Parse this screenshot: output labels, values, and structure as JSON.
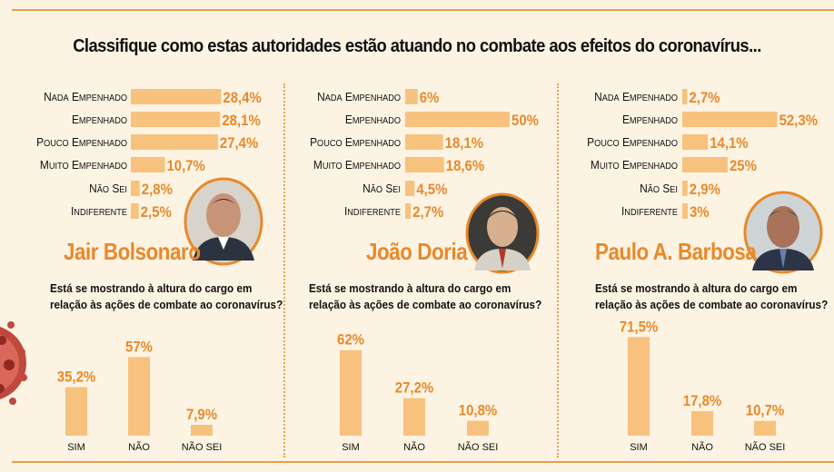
{
  "title": "Classifique como estas autoridades estão atuando no combate aos efeitos do coronavírus...",
  "question": [
    "Está se mostrando à altura do cargo em",
    "relação às ações de combate ao coronavírus?"
  ],
  "colors": {
    "bar": "#f7c27e",
    "value": "#e8892a",
    "accent": "#e9a04c",
    "background": "#fdf3e3"
  },
  "chart_data": [
    {
      "type": "bar",
      "name": "Jair Bolsonaro",
      "categories": [
        "Nada empenhado",
        "Empenhado",
        "Pouco empenhado",
        "Muito empenhado",
        "Não sei",
        "Indiferente"
      ],
      "values": [
        28.4,
        28.1,
        27.4,
        10.7,
        2.8,
        2.5
      ],
      "labels": [
        "28,4%",
        "28,1%",
        "27,4%",
        "10,7%",
        "2,8%",
        "2,5%"
      ],
      "orientation": "horizontal"
    },
    {
      "type": "bar",
      "name": "João Doria",
      "categories": [
        "Nada empenhado",
        "Empenhado",
        "Pouco empenhado",
        "Muito empenhado",
        "Não sei",
        "Indiferente"
      ],
      "values": [
        6,
        50,
        18.1,
        18.6,
        4.5,
        2.7
      ],
      "labels": [
        "6%",
        "50%",
        "18,1%",
        "18,6%",
        "4,5%",
        "2,7%"
      ],
      "orientation": "horizontal"
    },
    {
      "type": "bar",
      "name": "Paulo A. Barbosa",
      "categories": [
        "Nada empenhado",
        "Empenhado",
        "Pouco empenhado",
        "Muito empenhado",
        "Não sei",
        "Indiferente"
      ],
      "values": [
        2.7,
        52.3,
        14.1,
        25,
        2.9,
        3
      ],
      "labels": [
        "2,7%",
        "52,3%",
        "14,1%",
        "25%",
        "2,9%",
        "3%"
      ],
      "orientation": "horizontal"
    },
    {
      "type": "bar",
      "name": "Jair Bolsonaro",
      "categories": [
        "SIM",
        "NÃO",
        "NÃO SEI"
      ],
      "values": [
        35.2,
        57,
        7.9
      ],
      "labels": [
        "35,2%",
        "57%",
        "7,9%"
      ],
      "orientation": "vertical"
    },
    {
      "type": "bar",
      "name": "João Doria",
      "categories": [
        "SIM",
        "NÃO",
        "NÃO SEI"
      ],
      "values": [
        62,
        27.2,
        10.8
      ],
      "labels": [
        "62%",
        "27,2%",
        "10,8%"
      ],
      "orientation": "vertical"
    },
    {
      "type": "bar",
      "name": "Paulo A. Barbosa",
      "categories": [
        "SIM",
        "NÃO",
        "NÃO SEI"
      ],
      "values": [
        71.5,
        17.8,
        10.7
      ],
      "labels": [
        "71,5%",
        "17,8%",
        "10,7%"
      ],
      "orientation": "vertical"
    }
  ]
}
